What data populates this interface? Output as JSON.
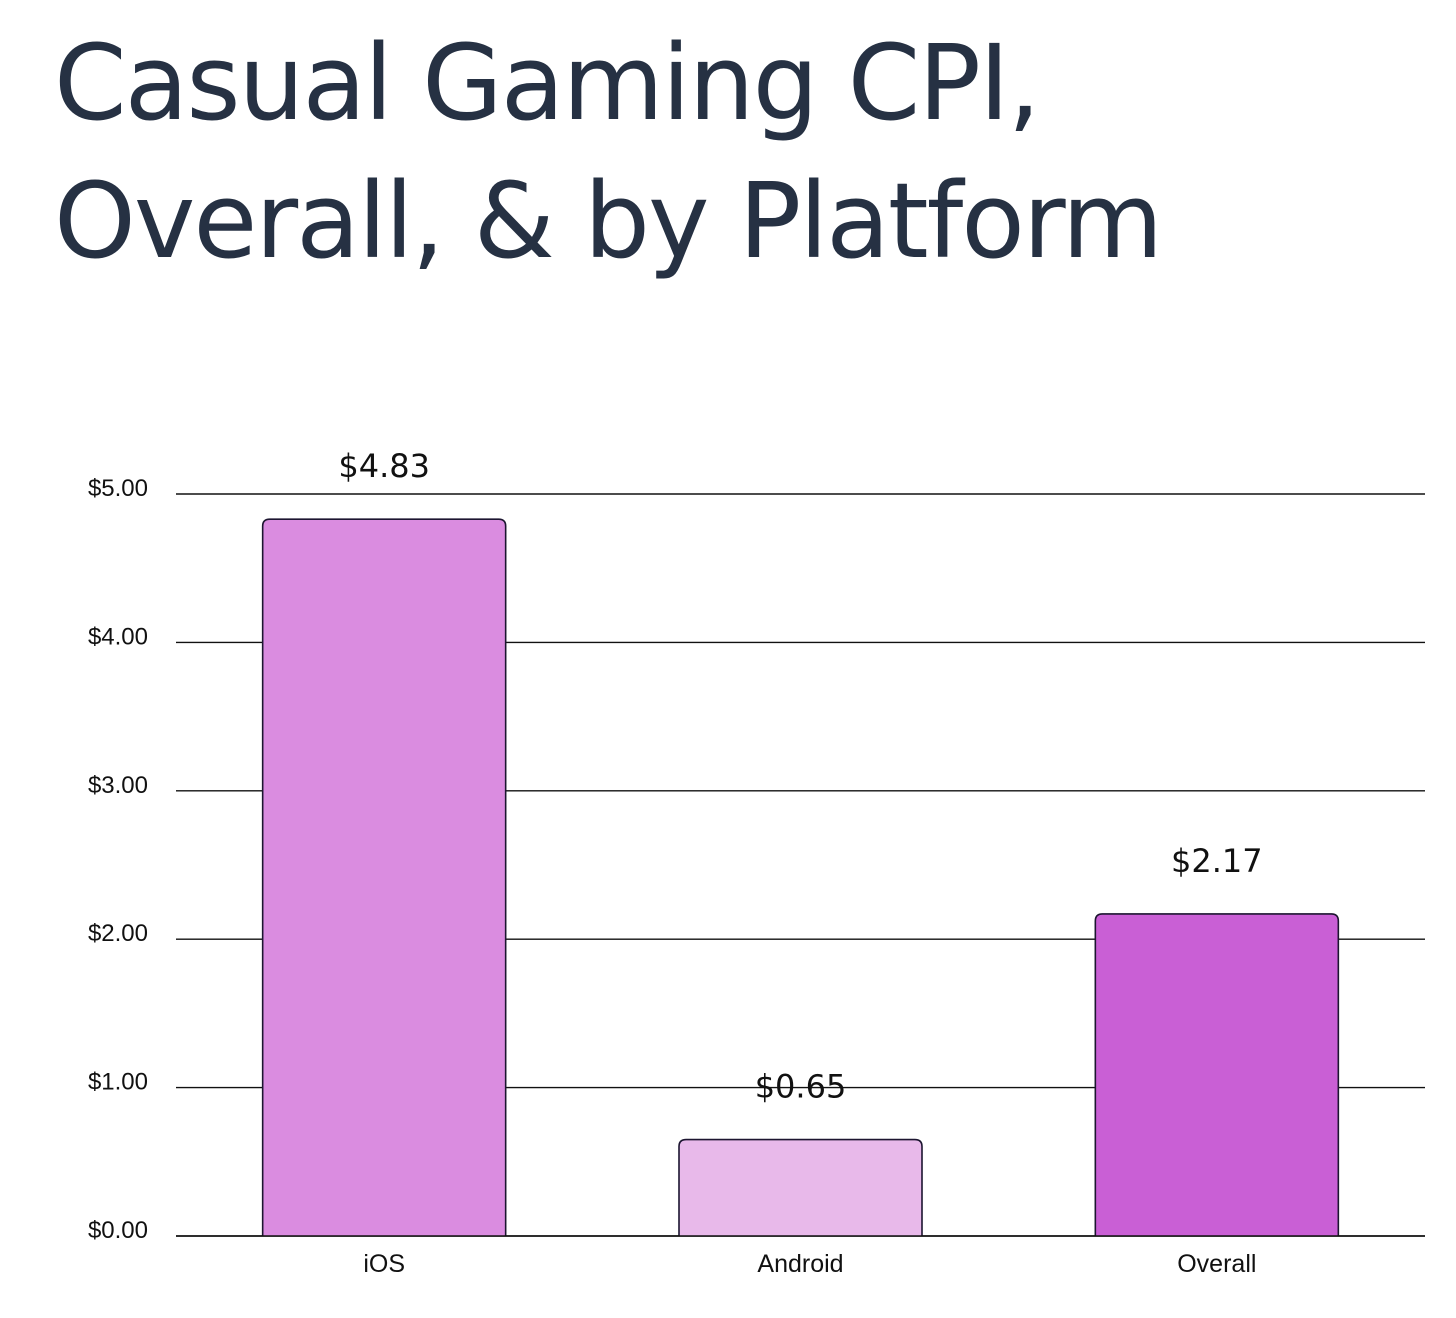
{
  "title": {
    "line1": "Casual Gaming CPI,",
    "line2": "Overall, & by Platform"
  },
  "chart_data": {
    "type": "bar",
    "title": "Casual Gaming CPI, Overall, & by Platform",
    "categories": [
      "iOS",
      "Android",
      "Overall"
    ],
    "values": [
      4.83,
      0.65,
      2.17
    ],
    "value_labels": [
      "$4.83",
      "$0.65",
      "$2.17"
    ],
    "bar_colors": [
      "#da8ce0",
      "#e8b9ea",
      "#c95fd5"
    ],
    "bar_stroke": "#1c1530",
    "xlabel": "",
    "ylabel": "",
    "ylim": [
      0,
      5
    ],
    "yticks": [
      {
        "value": 0,
        "label": "$0.00"
      },
      {
        "value": 1,
        "label": "$1.00"
      },
      {
        "value": 2,
        "label": "$2.00"
      },
      {
        "value": 3,
        "label": "$3.00"
      },
      {
        "value": 4,
        "label": "$4.00"
      },
      {
        "value": 5,
        "label": "$5.00"
      }
    ],
    "grid": true,
    "legend": "none"
  }
}
